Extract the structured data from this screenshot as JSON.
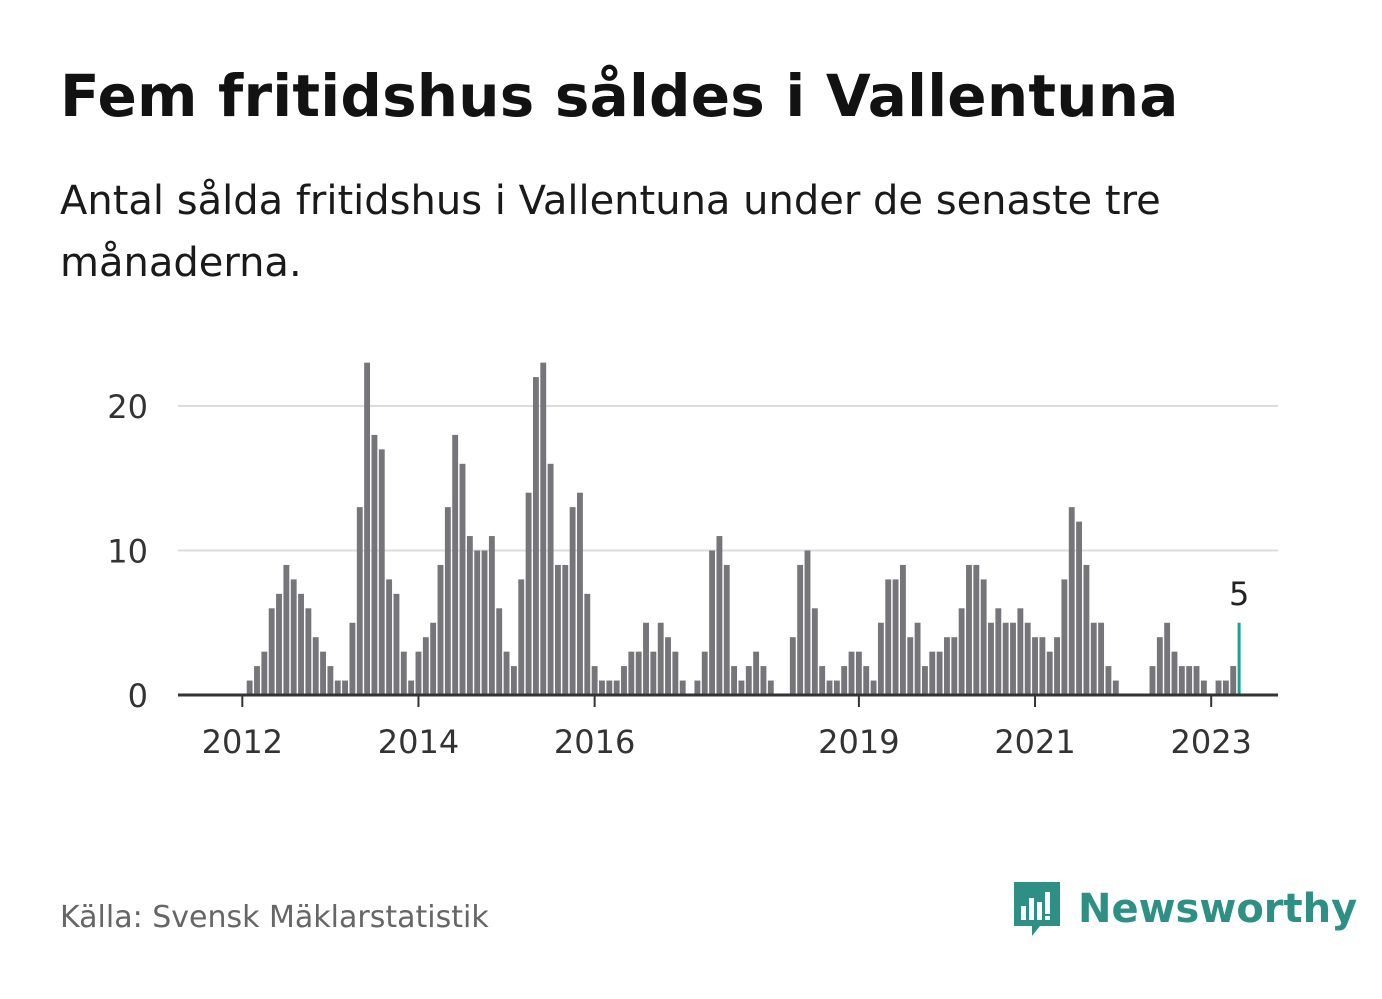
{
  "header": {
    "title": "Fem fritidshus såldes i Vallentuna",
    "subtitle": "Antal sålda fritidshus i Vallentuna under de senaste tre månaderna."
  },
  "footer": {
    "source": "Källa: Svensk Mäklarstatistik",
    "brand": "Newsworthy",
    "brand_icon": "newsworthy-logo-icon"
  },
  "colors": {
    "bar": "#76757a",
    "highlight": "#1aa395",
    "grid": "#dcdcdc",
    "axis": "#333333",
    "brand": "#2e8f85"
  },
  "chart_data": {
    "type": "bar",
    "title": "Fem fritidshus såldes i Vallentuna",
    "xlabel": "",
    "ylabel": "",
    "ylim": [
      0,
      24
    ],
    "yticks": [
      0,
      10,
      20
    ],
    "grid": true,
    "x_start": "2011-06",
    "xticks": [
      {
        "label": "2012",
        "index": 7
      },
      {
        "label": "2014",
        "index": 31
      },
      {
        "label": "2016",
        "index": 55
      },
      {
        "label": "2019",
        "index": 91
      },
      {
        "label": "2021",
        "index": 115
      },
      {
        "label": "2023",
        "index": 139
      }
    ],
    "values": [
      0,
      0,
      0,
      0,
      0,
      0,
      0,
      0,
      1,
      2,
      3,
      6,
      7,
      9,
      8,
      7,
      6,
      4,
      3,
      2,
      1,
      1,
      5,
      13,
      23,
      18,
      17,
      8,
      7,
      3,
      1,
      3,
      4,
      5,
      9,
      13,
      18,
      16,
      11,
      10,
      10,
      11,
      6,
      3,
      2,
      8,
      14,
      22,
      23,
      16,
      9,
      9,
      13,
      14,
      7,
      2,
      1,
      1,
      1,
      2,
      3,
      3,
      5,
      3,
      5,
      4,
      3,
      1,
      0,
      1,
      3,
      10,
      11,
      9,
      2,
      1,
      2,
      3,
      2,
      1,
      0,
      0,
      4,
      9,
      10,
      6,
      2,
      1,
      1,
      2,
      3,
      3,
      2,
      1,
      5,
      8,
      8,
      9,
      4,
      5,
      2,
      3,
      3,
      4,
      4,
      6,
      9,
      9,
      8,
      5,
      6,
      5,
      5,
      6,
      5,
      4,
      4,
      3,
      4,
      8,
      13,
      12,
      9,
      5,
      5,
      2,
      1,
      0,
      0,
      0,
      0,
      2,
      4,
      5,
      3,
      2,
      2,
      2,
      1,
      0,
      1,
      1,
      2,
      5
    ],
    "highlight_index": 143,
    "annotation": "5"
  }
}
